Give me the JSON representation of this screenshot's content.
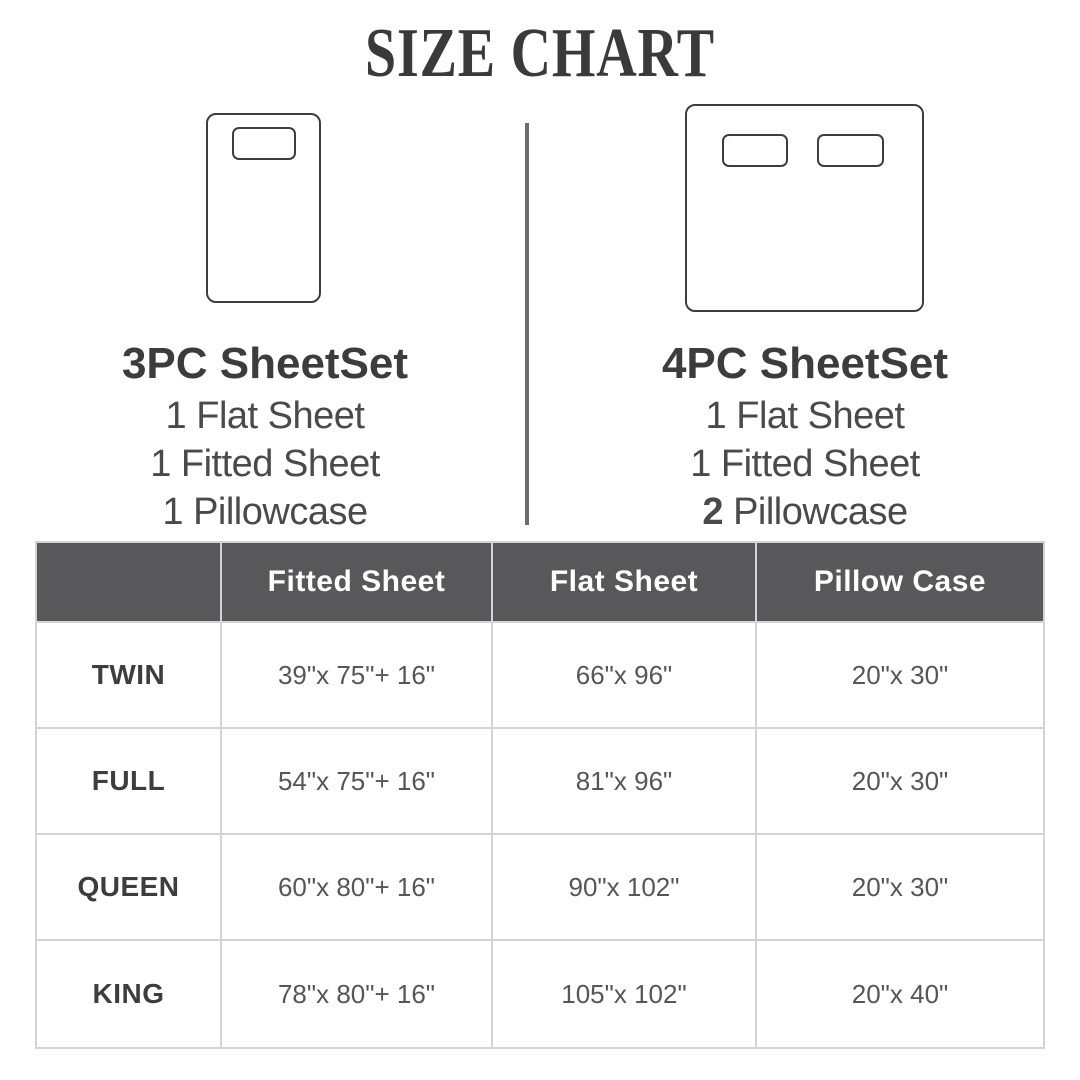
{
  "title": "SIZE CHART",
  "colors": {
    "title_text": "#3a3a3c",
    "diagram_stroke": "#3e3e40",
    "divider": "#6d6d6f",
    "table_header_bg": "#58585a",
    "table_header_text": "#ffffff",
    "table_border": "#d4d4d4",
    "size_label_text": "#3d3d3f",
    "value_text": "#565658"
  },
  "sets": [
    {
      "name": "3PC SheetSet",
      "items": [
        {
          "qty": "1",
          "label": "Flat Sheet"
        },
        {
          "qty": "1",
          "label": "Fitted Sheet"
        },
        {
          "qty": "1",
          "label": "Pillowcase"
        }
      ]
    },
    {
      "name": "4PC SheetSet",
      "items": [
        {
          "qty": "1",
          "label": "Flat Sheet"
        },
        {
          "qty": "1",
          "label": "Fitted Sheet"
        },
        {
          "qty": "2",
          "label": "Pillowcase"
        }
      ]
    }
  ],
  "chart_data": {
    "type": "table",
    "title": "SIZE CHART",
    "columns": [
      "",
      "Fitted Sheet",
      "Flat Sheet",
      "Pillow Case"
    ],
    "rows": [
      [
        "TWIN",
        "39\"x 75\"+ 16\"",
        "66\"x 96\"",
        "20\"x 30\""
      ],
      [
        "FULL",
        "54\"x 75\"+ 16\"",
        "81\"x 96\"",
        "20\"x 30\""
      ],
      [
        "QUEEN",
        "60\"x 80\"+ 16\"",
        "90\"x 102\"",
        "20\"x 30\""
      ],
      [
        "KING",
        "78\"x 80\"+ 16\"",
        "105\"x 102\"",
        "20\"x 40\""
      ]
    ]
  }
}
